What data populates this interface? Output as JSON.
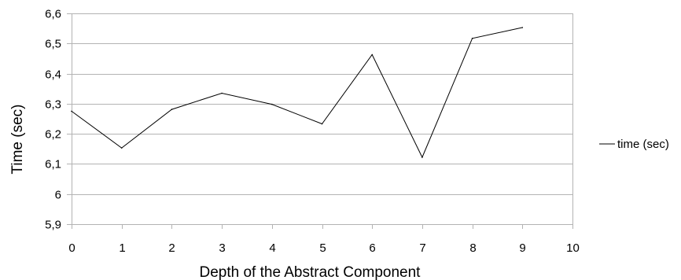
{
  "chart_data": {
    "type": "line",
    "xlabel": "Depth of the Abstract Component",
    "ylabel": "Time (sec)",
    "xlim": [
      0,
      10
    ],
    "ylim": [
      5.9,
      6.6
    ],
    "x_ticks": [
      0,
      1,
      2,
      3,
      4,
      5,
      6,
      7,
      8,
      9,
      10
    ],
    "y_ticks": [
      5.9,
      6.0,
      6.1,
      6.2,
      6.3,
      6.4,
      6.5,
      6.6
    ],
    "x_tick_labels": [
      "0",
      "1",
      "2",
      "3",
      "4",
      "5",
      "6",
      "7",
      "8",
      "9",
      "10"
    ],
    "y_tick_labels": [
      "5,9",
      "6",
      "6,1",
      "6,2",
      "6,3",
      "6,4",
      "6,5",
      "6,6"
    ],
    "grid": "horizontal",
    "legend_position": "right",
    "line_color": "#000000",
    "grid_color": "#b3b3b3",
    "series": [
      {
        "name": "time (sec)",
        "x": [
          0,
          1,
          2,
          3,
          4,
          5,
          6,
          7,
          8,
          9
        ],
        "values": [
          6.275,
          6.153,
          6.281,
          6.335,
          6.298,
          6.233,
          6.463,
          6.122,
          6.517,
          6.553
        ]
      }
    ]
  }
}
